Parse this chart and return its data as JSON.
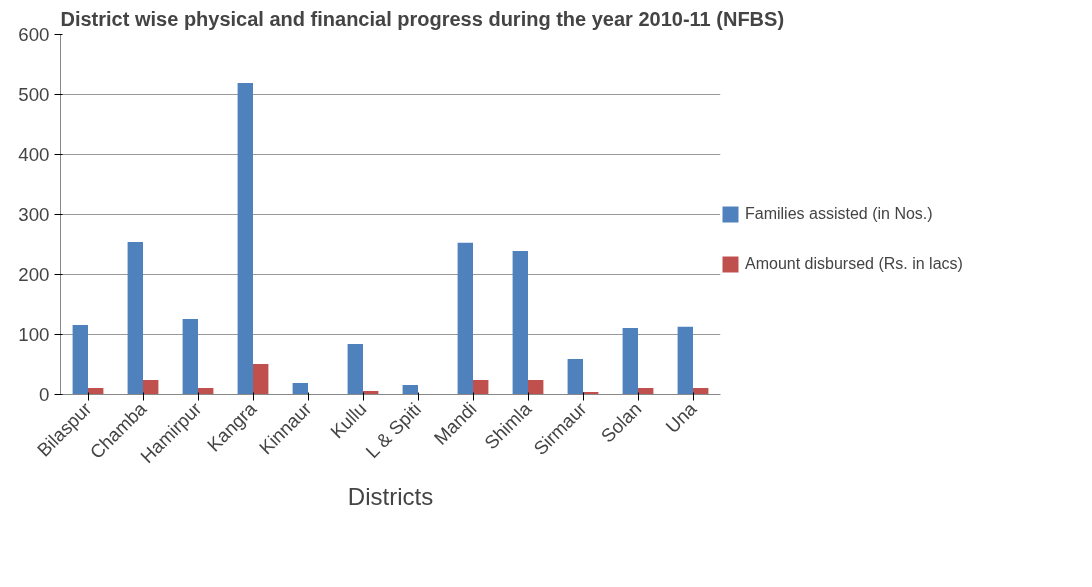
{
  "chart_data": {
    "type": "bar",
    "title": "District wise physical and financial progress during the year 2010-11 (NFBS)",
    "xlabel": "Districts",
    "categories": [
      "Bilaspur",
      "Chamba",
      "Hamirpur",
      "Kangra",
      "Kinnaur",
      "Kullu",
      "L & Spiti",
      "Mandi",
      "Shimla",
      "Sirmaur",
      "Solan",
      "Una"
    ],
    "series": [
      {
        "name": "Families assisted (in Nos.)",
        "color": "#4f81bd",
        "values": [
          116,
          254,
          126,
          519,
          19,
          84,
          16,
          253,
          239,
          59,
          111,
          113
        ]
      },
      {
        "name": "Amount disbursed (Rs. in lacs)",
        "color": "#c0504d",
        "values": [
          11,
          24,
          11,
          51,
          0,
          6,
          0,
          24,
          24,
          4,
          11,
          11
        ]
      }
    ],
    "ylim": [
      0,
      600
    ],
    "yticks": [
      0,
      100,
      200,
      300,
      400,
      500,
      600
    ],
    "grid": "y",
    "legend": "right"
  }
}
